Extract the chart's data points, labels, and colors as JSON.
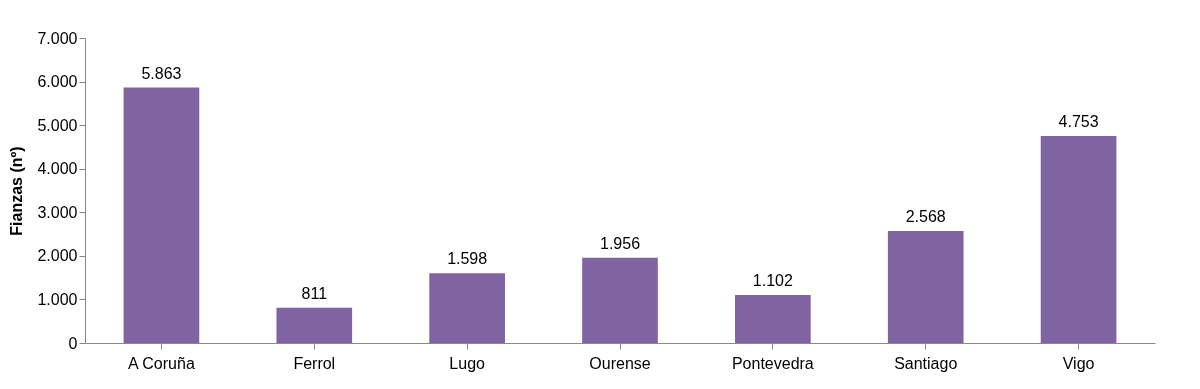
{
  "chart_data": {
    "type": "bar",
    "ylabel": "Fianzas (nº)",
    "categories": [
      "A Coruña",
      "Ferrol",
      "Lugo",
      "Ourense",
      "Pontevedra",
      "Santiago",
      "Vigo"
    ],
    "values": [
      5863,
      811,
      1598,
      1956,
      1102,
      2568,
      4753
    ],
    "value_labels": [
      "5.863",
      "811",
      "1.598",
      "1.956",
      "1.102",
      "2.568",
      "4.753"
    ],
    "color": "#8064a2",
    "ylim": [
      0,
      7000
    ],
    "yticks": [
      {
        "value": 0,
        "label": "0"
      },
      {
        "value": 1000,
        "label": "1.000"
      },
      {
        "value": 2000,
        "label": "2.000"
      },
      {
        "value": 3000,
        "label": "3.000"
      },
      {
        "value": 4000,
        "label": "4.000"
      },
      {
        "value": 5000,
        "label": "5.000"
      },
      {
        "value": 6000,
        "label": "6.000"
      },
      {
        "value": 7000,
        "label": "7.000"
      }
    ],
    "grid": false
  }
}
